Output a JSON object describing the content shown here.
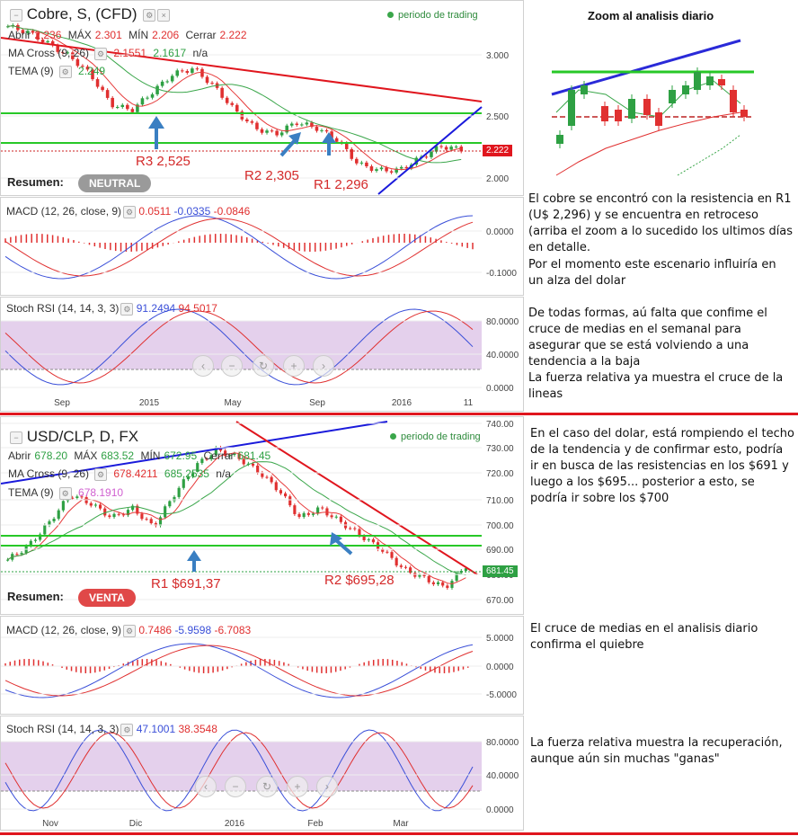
{
  "top": {
    "title": "Cobre, S, (CFD)",
    "period_label": "periodo de trading",
    "ohlc": {
      "abrir_label": "Abrir",
      "abrir": "2.236",
      "max_label": "MÁX",
      "max": "2.301",
      "min_label": "MÍN",
      "min": "2.206",
      "cerrar_label": "Cerrar",
      "cerrar": "2.222"
    },
    "ma_cross": {
      "label": "MA Cross (9, 26)",
      "v1": "2.1551",
      "v2": "2.1617",
      "v3": "n/a"
    },
    "tema": {
      "label": "TEMA (9)",
      "value": "2.249"
    },
    "resumen_label": "Resumen:",
    "resumen_value": "NEUTRAL",
    "price_tag": "2.222",
    "y_ticks": [
      "3.000",
      "2.500",
      "2.000"
    ],
    "annotations": [
      "R3 2,525",
      "R2 2,305",
      "R1 2,296"
    ],
    "macd": {
      "label": "MACD (12, 26, close, 9)",
      "v1": "0.0511",
      "v2": "-0.0335",
      "v3": "-0.0846",
      "y_ticks": [
        "0.0000",
        "-0.1000"
      ]
    },
    "stoch": {
      "label": "Stoch RSI (14, 14, 3, 3)",
      "v1": "91.2494",
      "v2": "94.5017",
      "y_ticks": [
        "80.0000",
        "40.0000",
        "0.0000"
      ]
    },
    "x_ticks": [
      "Sep",
      "2015",
      "May",
      "Sep",
      "2016",
      "11"
    ]
  },
  "bottom": {
    "title": "USD/CLP, D, FX",
    "period_label": "periodo de trading",
    "ohlc": {
      "abrir_label": "Abrir",
      "abrir": "678.20",
      "max_label": "MÁX",
      "max": "683.52",
      "min_label": "MÍN",
      "min": "672.95",
      "cerrar_label": "Cerrar",
      "cerrar": "681.45"
    },
    "ma_cross": {
      "label": "MA Cross (9, 26)",
      "v1": "678.4211",
      "v2": "685.2535",
      "v3": "n/a"
    },
    "tema": {
      "label": "TEMA (9)",
      "value": "678.1910"
    },
    "resumen_label": "Resumen:",
    "resumen_value": "VENTA",
    "price_tag": "681.45",
    "y_ticks": [
      "740.00",
      "730.00",
      "720.00",
      "710.00",
      "700.00",
      "690.00",
      "680.00",
      "670.00"
    ],
    "annotations": [
      "R1 $691,37",
      "R2 $695,28"
    ],
    "macd": {
      "label": "MACD (12, 26, close, 9)",
      "v1": "0.7486",
      "v2": "-5.9598",
      "v3": "-6.7083",
      "y_ticks": [
        "5.0000",
        "0.0000",
        "-5.0000"
      ]
    },
    "stoch": {
      "label": "Stoch RSI (14, 14, 3, 3)",
      "v1": "47.1001",
      "v2": "38.3548",
      "y_ticks": [
        "80.0000",
        "40.0000",
        "0.0000"
      ]
    },
    "x_ticks": [
      "Nov",
      "Dic",
      "2016",
      "Feb",
      "Mar"
    ]
  },
  "zoom_title": "Zoom al analisis diario",
  "notes_top": [
    "El cobre se encontró con la resistencia en R1 (U$ 2,296) y se encuentra en retroceso (arriba el zoom a lo sucedido los ultimos días en detalle.",
    "Por el momento este escenario influiría en un alza del dolar",
    "De todas formas, aú falta que confime el cruce de medias en el semanal para asegurar que se está volviendo a una tendencia a la baja",
    "La fuerza relativa ya muestra el cruce de la lineas"
  ],
  "notes_bottom": [
    "En el caso del dolar, está rompiendo el techo de la tendencia y de confirmar esto, podría ir en busca de las resistencias en los $691 y luego a los $695... posterior a esto, se podría ir sobre los $700",
    "El cruce de medias en el analisis diario confirma el quiebre",
    "La fuerza relativa muestra la recuperación, aunque aún sin muchas \"ganas\""
  ],
  "colors": {
    "up": "#2ea043",
    "down": "#e03030",
    "accent_red": "#e0161e",
    "badge_neutral": "#9a9a9a",
    "badge_venta": "#e04848",
    "stoch_fill": "#e4d0ec",
    "blue": "#3a4fd8",
    "green_line": "#27c827"
  },
  "chart_data": [
    {
      "type": "line",
      "title": "Cobre, S, (CFD)",
      "series": [
        {
          "name": "Cobre",
          "values": [
            3.25,
            3.2,
            3.1,
            3.0,
            2.85,
            2.6,
            2.55,
            2.7,
            2.85,
            2.9,
            2.75,
            2.55,
            2.4,
            2.35,
            2.45,
            2.4,
            2.3,
            2.1,
            2.05,
            2.05,
            2.15,
            2.25,
            2.222
          ]
        }
      ],
      "ylim": [
        1.85,
        3.35
      ]
    },
    {
      "type": "line",
      "title": "USD/CLP, D, FX",
      "series": [
        {
          "name": "USD/CLP",
          "values": [
            684,
            690,
            700,
            712,
            708,
            702,
            706,
            698,
            712,
            724,
            731,
            728,
            722,
            714,
            702,
            706,
            700,
            694,
            688,
            680,
            676,
            672,
            681.45
          ]
        }
      ],
      "ylim": [
        665,
        742
      ]
    }
  ]
}
